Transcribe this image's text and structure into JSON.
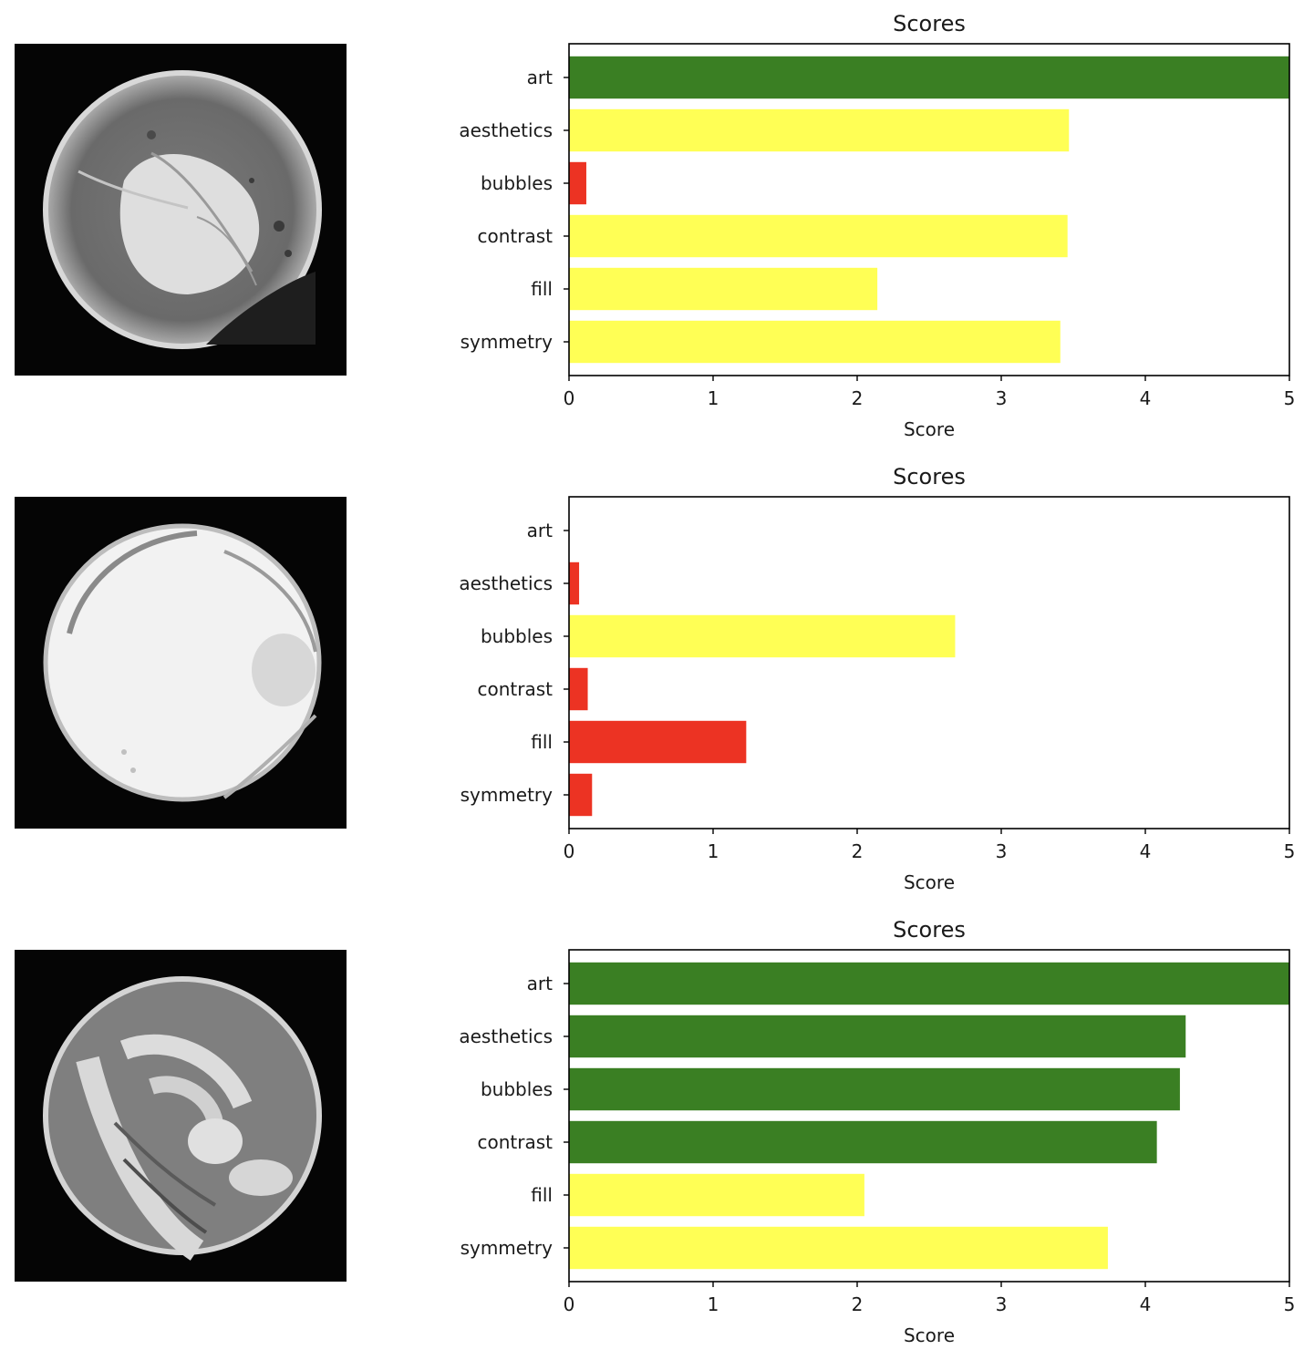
{
  "colors": {
    "high": "#3a7f23",
    "mid": "#ffff55",
    "low": "#ec3323",
    "frame": "#000000"
  },
  "photos": [
    {
      "icon": "latte-photo-leaf-art"
    },
    {
      "icon": "latte-photo-plain-foam"
    },
    {
      "icon": "latte-photo-tulip-art"
    }
  ],
  "chart_data": [
    {
      "type": "bar",
      "orientation": "horizontal",
      "title": "Scores",
      "xlabel": "Score",
      "ylabel": "",
      "xlim": [
        0,
        5
      ],
      "xticks": [
        "0",
        "1",
        "2",
        "3",
        "4",
        "5"
      ],
      "categories": [
        "art",
        "aesthetics",
        "bubbles",
        "contrast",
        "fill",
        "symmetry"
      ],
      "values": [
        5.0,
        3.47,
        0.12,
        3.46,
        2.14,
        3.41
      ],
      "bar_colors": [
        "high",
        "mid",
        "low",
        "mid",
        "mid",
        "mid"
      ]
    },
    {
      "type": "bar",
      "orientation": "horizontal",
      "title": "Scores",
      "xlabel": "Score",
      "ylabel": "",
      "xlim": [
        0,
        5
      ],
      "xticks": [
        "0",
        "1",
        "2",
        "3",
        "4",
        "5"
      ],
      "categories": [
        "art",
        "aesthetics",
        "bubbles",
        "contrast",
        "fill",
        "symmetry"
      ],
      "values": [
        0.0,
        0.07,
        2.68,
        0.13,
        1.23,
        0.16
      ],
      "bar_colors": [
        "low",
        "low",
        "mid",
        "low",
        "low",
        "low"
      ]
    },
    {
      "type": "bar",
      "orientation": "horizontal",
      "title": "Scores",
      "xlabel": "Score",
      "ylabel": "",
      "xlim": [
        0,
        5
      ],
      "xticks": [
        "0",
        "1",
        "2",
        "3",
        "4",
        "5"
      ],
      "categories": [
        "art",
        "aesthetics",
        "bubbles",
        "contrast",
        "fill",
        "symmetry"
      ],
      "values": [
        5.0,
        4.28,
        4.24,
        4.08,
        2.05,
        3.74
      ],
      "bar_colors": [
        "high",
        "high",
        "high",
        "high",
        "mid",
        "mid"
      ]
    }
  ]
}
